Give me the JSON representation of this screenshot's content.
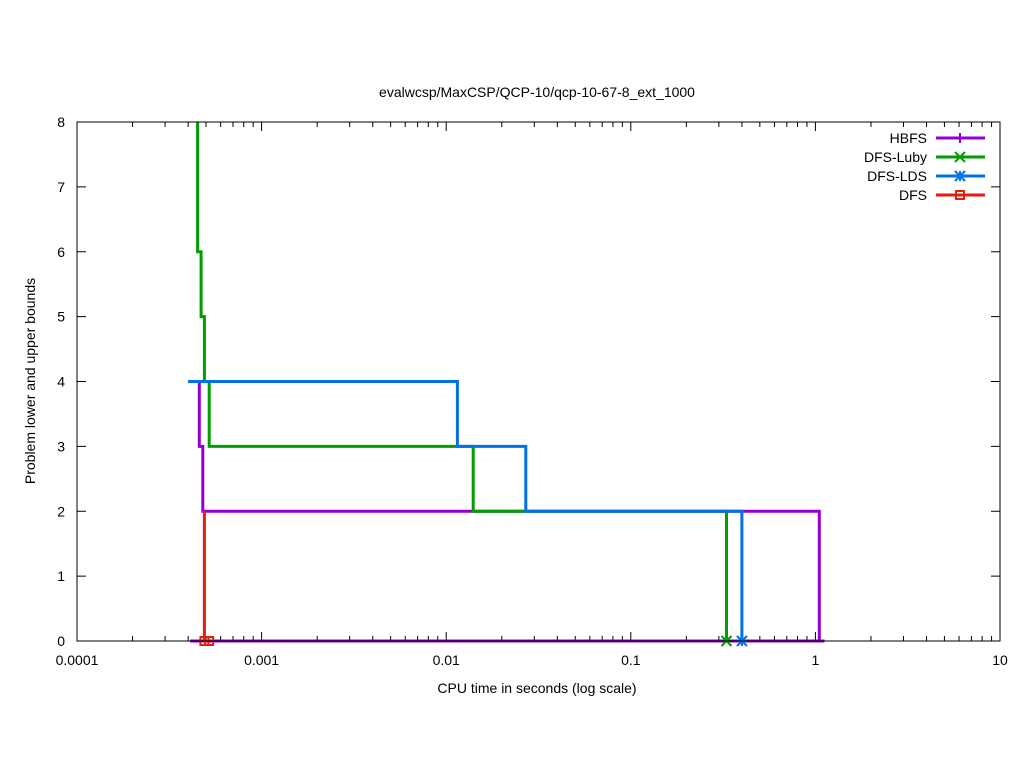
{
  "chart_data": {
    "type": "line",
    "title": "evalwcsp/MaxCSP/QCP-10/qcp-10-67-8_ext_1000",
    "xlabel": "CPU time in seconds (log scale)",
    "ylabel": "Problem lower and upper bounds",
    "xscale": "log",
    "xlim": [
      0.0001,
      10
    ],
    "ylim": [
      0,
      8
    ],
    "x_ticks": [
      0.0001,
      0.001,
      0.01,
      0.1,
      1,
      10
    ],
    "x_tick_labels": [
      "0.0001",
      "0.001",
      "0.01",
      "0.1",
      "1",
      "10"
    ],
    "y_ticks": [
      0,
      1,
      2,
      3,
      4,
      5,
      6,
      7,
      8
    ],
    "y_tick_labels": [
      "0",
      "1",
      "2",
      "3",
      "4",
      "5",
      "6",
      "7",
      "8"
    ],
    "grid": false,
    "legend_position": "top-right",
    "series": [
      {
        "name": "HBFS",
        "color": "#9400d3",
        "marker": "plus",
        "upper": [
          [
            0.00046,
            4
          ],
          [
            0.00046,
            3
          ],
          [
            0.00048,
            3
          ],
          [
            0.00048,
            2
          ],
          [
            1.05,
            2
          ],
          [
            1.05,
            0
          ],
          [
            1.12,
            0
          ]
        ],
        "lower": [
          [
            0.00041,
            0
          ],
          [
            1.12,
            0
          ]
        ],
        "marker_points": []
      },
      {
        "name": "DFS-Luby",
        "color": "#009e00",
        "marker": "cross",
        "upper": [
          [
            0.00045,
            8
          ],
          [
            0.00045,
            6
          ],
          [
            0.00047,
            6
          ],
          [
            0.00047,
            5
          ],
          [
            0.00049,
            5
          ],
          [
            0.00049,
            4
          ],
          [
            0.00052,
            4
          ],
          [
            0.00052,
            3
          ],
          [
            0.014,
            3
          ],
          [
            0.014,
            2
          ],
          [
            0.33,
            2
          ],
          [
            0.33,
            0
          ]
        ],
        "lower": [],
        "marker_points": [
          [
            0.33,
            0
          ]
        ]
      },
      {
        "name": "DFS-LDS",
        "color": "#0072e6",
        "marker": "star",
        "upper": [
          [
            0.0004,
            4
          ],
          [
            0.0115,
            4
          ],
          [
            0.0115,
            3
          ],
          [
            0.027,
            3
          ],
          [
            0.027,
            2
          ],
          [
            0.4,
            2
          ],
          [
            0.4,
            0
          ]
        ],
        "lower": [],
        "marker_points": [
          [
            0.4,
            0
          ]
        ]
      },
      {
        "name": "DFS",
        "color": "#e51e10",
        "marker": "square",
        "upper": [
          [
            0.00049,
            2
          ],
          [
            0.00049,
            0
          ]
        ],
        "lower": [
          [
            0.00049,
            0
          ],
          [
            0.00052,
            0
          ]
        ],
        "marker_points": [
          [
            0.00049,
            0
          ],
          [
            0.00052,
            0
          ]
        ]
      }
    ]
  }
}
